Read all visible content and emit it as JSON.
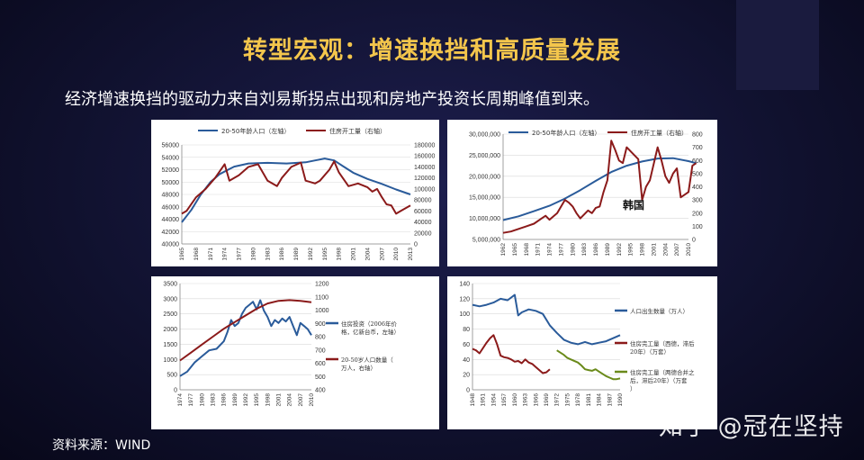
{
  "header": {
    "title": "转型宏观：增速换挡和高质量发展",
    "subtitle": "经济增速换挡的驱动力来自刘易斯拐点出现和房地产投资长周期峰值到来。"
  },
  "footer": {
    "source": "资料来源：WIND",
    "watermark": "知乎 @冠在坚持"
  },
  "colors": {
    "blue": "#2a5b9a",
    "red": "#8b1a1a",
    "green": "#6a8a1a",
    "gold": "#f4c64c"
  },
  "chart_data": [
    {
      "type": "line",
      "xlabels": [
        "1965",
        "1968",
        "1971",
        "1974",
        "1977",
        "1980",
        "1983",
        "1986",
        "1989",
        "1992",
        "1995",
        "1998",
        "2001",
        "2004",
        "2007",
        "2010",
        "2013"
      ],
      "y_left": {
        "min": 40000,
        "max": 56000,
        "step": 2000
      },
      "y_right": {
        "min": 0,
        "max": 180000,
        "step": 20000
      },
      "series": [
        {
          "name": "20-50年龄人口（左轴）",
          "axis": "left",
          "color": "#2a5b9a",
          "x": [
            1965,
            1967,
            1969,
            1971,
            1973,
            1976,
            1979,
            1983,
            1987,
            1991,
            1993,
            1995,
            1997,
            1999,
            2001,
            2004,
            2007,
            2010,
            2013
          ],
          "y": [
            43500,
            45500,
            48000,
            50000,
            51300,
            52500,
            53000,
            53100,
            53000,
            53200,
            53500,
            53800,
            53500,
            52500,
            51500,
            50500,
            49700,
            48800,
            48000
          ]
        },
        {
          "name": "住房开工量（右轴）",
          "axis": "right",
          "color": "#8b1a1a",
          "x": [
            1965,
            1966,
            1968,
            1970,
            1972,
            1974,
            1975,
            1977,
            1979,
            1981,
            1983,
            1985,
            1986,
            1988,
            1990,
            1991,
            1993,
            1994,
            1996,
            1997,
            1998,
            2000,
            2002,
            2004,
            2005,
            2006,
            2007,
            2008,
            2009,
            2010,
            2011,
            2013
          ],
          "y": [
            55000,
            60000,
            85000,
            100000,
            120000,
            145000,
            115000,
            125000,
            140000,
            145000,
            115000,
            105000,
            120000,
            140000,
            148000,
            115000,
            110000,
            115000,
            135000,
            150000,
            130000,
            105000,
            110000,
            103000,
            95000,
            100000,
            85000,
            72000,
            70000,
            55000,
            60000,
            70000
          ]
        }
      ]
    },
    {
      "type": "line",
      "label": "韩国",
      "xlabels": [
        "1962",
        "1965",
        "1968",
        "1971",
        "1974",
        "1977",
        "1980",
        "1983",
        "1986",
        "1989",
        "1992",
        "1995",
        "1998",
        "2001",
        "2004",
        "2007",
        "2010"
      ],
      "y_left": {
        "min": 5000000,
        "max": 30000000,
        "step": 5000000,
        "ticks": [
          "5,000,000",
          "10,000,000",
          "15,000,000",
          "20,000,000",
          "25,000,000",
          "30,000,000"
        ]
      },
      "y_right": {
        "min": 0,
        "max": 800,
        "step": 100
      },
      "series": [
        {
          "name": "20-50年龄人口（左轴）",
          "axis": "left",
          "color": "#2a5b9a",
          "x": [
            1962,
            1966,
            1970,
            1974,
            1978,
            1982,
            1986,
            1990,
            1994,
            1998,
            2002,
            2006,
            2010,
            2012
          ],
          "y": [
            9600000,
            10500000,
            11700000,
            13000000,
            14700000,
            16700000,
            18900000,
            21000000,
            22500000,
            23500000,
            24200000,
            24300000,
            23600000,
            23100000
          ]
        },
        {
          "name": "住房开工量（右轴）",
          "axis": "right",
          "color": "#8b1a1a",
          "x": [
            1962,
            1964,
            1966,
            1968,
            1970,
            1972,
            1973,
            1974,
            1976,
            1978,
            1979,
            1980,
            1981,
            1982,
            1984,
            1985,
            1986,
            1987,
            1988,
            1989,
            1990,
            1991,
            1992,
            1993,
            1994,
            1996,
            1997,
            1998,
            1999,
            2000,
            2002,
            2003,
            2004,
            2005,
            2006,
            2007,
            2008,
            2009,
            2010,
            2011,
            2012
          ],
          "y": [
            50,
            60,
            80,
            100,
            120,
            160,
            180,
            150,
            200,
            300,
            280,
            250,
            200,
            160,
            220,
            200,
            240,
            250,
            360,
            450,
            750,
            680,
            600,
            580,
            700,
            640,
            610,
            300,
            400,
            450,
            700,
            600,
            480,
            430,
            500,
            540,
            320,
            340,
            360,
            560,
            580
          ]
        }
      ]
    },
    {
      "type": "line",
      "xlabels": [
        "1974",
        "1977",
        "1980",
        "1983",
        "1986",
        "1989",
        "1992",
        "1995",
        "1998",
        "2001",
        "2004",
        "2007",
        "2010"
      ],
      "y_left": {
        "min": 0,
        "max": 3500,
        "step": 500
      },
      "y_right": {
        "min": 400,
        "max": 1200,
        "step": 100
      },
      "series": [
        {
          "name": "住房投资（2006年价格，亿新台币，左轴）",
          "axis": "left",
          "color": "#2a5b9a",
          "x": [
            1974,
            1976,
            1978,
            1980,
            1982,
            1984,
            1986,
            1987,
            1988,
            1989,
            1990,
            1991,
            1992,
            1993,
            1994,
            1995,
            1996,
            1997,
            1998,
            1999,
            2000,
            2001,
            2002,
            2003,
            2004,
            2005,
            2006,
            2007,
            2008,
            2009,
            2010
          ],
          "y": [
            450,
            600,
            900,
            1100,
            1300,
            1350,
            1600,
            1900,
            2300,
            2100,
            2200,
            2500,
            2700,
            2800,
            2900,
            2650,
            2950,
            2600,
            2400,
            2100,
            2300,
            2200,
            2350,
            2250,
            2400,
            2100,
            1800,
            2200,
            2100,
            2000,
            1800
          ]
        },
        {
          "name": "20-50岁人口数量（万人，右轴）",
          "axis": "right",
          "color": "#8b1a1a",
          "x": [
            1974,
            1977,
            1980,
            1983,
            1986,
            1989,
            1992,
            1995,
            1998,
            2001,
            2004,
            2007,
            2010
          ],
          "y": [
            620,
            680,
            740,
            800,
            860,
            910,
            960,
            1010,
            1050,
            1070,
            1075,
            1070,
            1060
          ]
        }
      ]
    },
    {
      "type": "line",
      "xlabels": [
        "1948",
        "1951",
        "1954",
        "1957",
        "1960",
        "1963",
        "1966",
        "1969",
        "1972",
        "1975",
        "1978",
        "1981",
        "1984",
        "1987",
        "1990"
      ],
      "y_left": {
        "min": 0,
        "max": 140,
        "step": 20
      },
      "series": [
        {
          "name": "人口出生数量（万人）",
          "color": "#2a5b9a",
          "x": [
            1948,
            1950,
            1952,
            1954,
            1956,
            1958,
            1960,
            1961,
            1962,
            1964,
            1966,
            1968,
            1970,
            1972,
            1974,
            1976,
            1978,
            1980,
            1982,
            1984,
            1986,
            1988,
            1990
          ],
          "y": [
            112,
            110,
            112,
            115,
            120,
            118,
            125,
            98,
            102,
            106,
            104,
            100,
            85,
            75,
            66,
            62,
            60,
            63,
            60,
            62,
            64,
            68,
            72
          ]
        },
        {
          "name": "住房完工量（西德，滞后20年）（万套）",
          "color": "#8b1a1a",
          "x": [
            1948,
            1949,
            1950,
            1952,
            1953,
            1954,
            1955,
            1956,
            1957,
            1958,
            1959,
            1960,
            1961,
            1962,
            1963,
            1964,
            1965,
            1966,
            1967,
            1968,
            1969,
            1970
          ],
          "y": [
            54,
            52,
            48,
            62,
            68,
            72,
            60,
            45,
            43,
            42,
            40,
            37,
            38,
            35,
            40,
            36,
            34,
            30,
            26,
            22,
            23,
            27
          ]
        },
        {
          "name": "住房完工量（两德合并之后，滞后20年）（万套）",
          "color": "#6a8a1a",
          "x": [
            1972,
            1974,
            1975,
            1976,
            1978,
            1979,
            1980,
            1981,
            1982,
            1983,
            1984,
            1986,
            1987,
            1988,
            1989,
            1990
          ],
          "y": [
            52,
            46,
            42,
            40,
            36,
            32,
            27,
            26,
            25,
            27,
            24,
            18,
            16,
            14,
            14,
            15
          ]
        }
      ]
    }
  ]
}
